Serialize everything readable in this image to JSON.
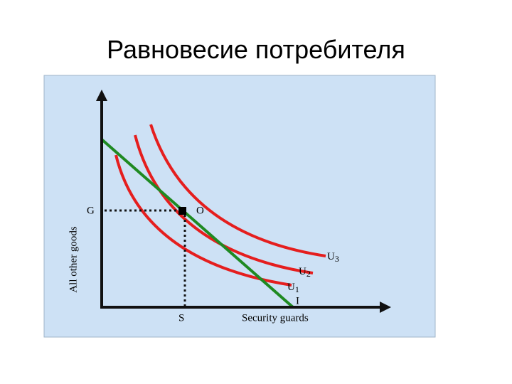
{
  "header": {
    "title": "Равновесие потребителя"
  },
  "diagram": {
    "y_axis_label": "All other goods",
    "x_axis_label": "Security guards",
    "point_labels": {
      "g": "G",
      "o": "O",
      "s": "S",
      "i": "I"
    },
    "curves": [
      {
        "letter": "U",
        "index": "1"
      },
      {
        "letter": "U",
        "index": "2"
      },
      {
        "letter": "U",
        "index": "3"
      }
    ]
  }
}
